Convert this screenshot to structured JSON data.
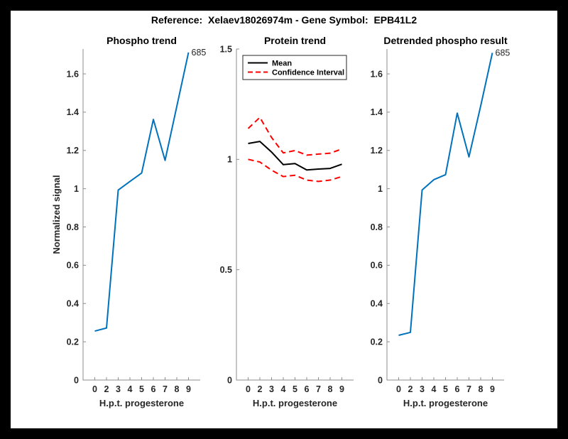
{
  "figure": {
    "title": "Reference:  Xelaev18026974m - Gene Symbol:  EPB41L2"
  },
  "colors": {
    "blue": "#0072BD",
    "black": "#000000",
    "red": "#FF0000",
    "axis": "#8c8c8c",
    "tick_label": "#262626",
    "frame": "#000000",
    "background": "#ffffff"
  },
  "chart_data": [
    {
      "type": "line",
      "title": "Phospho trend",
      "xlabel": "H.p.t. progesterone",
      "ylabel": "Normalized signal",
      "x_ticklabels": [
        "0",
        "2",
        "3",
        "4",
        "5",
        "6",
        "7",
        "8",
        "9"
      ],
      "yticks": [
        0,
        0.2,
        0.4,
        0.6,
        0.8,
        1,
        1.2,
        1.4,
        1.6
      ],
      "ylim": [
        0,
        1.73
      ],
      "grid": false,
      "series": [
        {
          "name": "Phospho signal",
          "color": "#0072BD",
          "style": "solid",
          "values": [
            0.256,
            0.272,
            0.993,
            1.038,
            1.082,
            1.362,
            1.148,
            1.43,
            1.712
          ]
        }
      ],
      "annotation": {
        "text": "685",
        "at": "last-point"
      }
    },
    {
      "type": "line",
      "title": "Protein trend",
      "xlabel": "H.p.t. progesterone",
      "ylabel": "",
      "x_ticklabels": [
        "0",
        "2",
        "3",
        "4",
        "5",
        "6",
        "7",
        "8",
        "9"
      ],
      "yticks": [
        0,
        0.5,
        1,
        1.5
      ],
      "ylim": [
        0,
        1.5
      ],
      "grid": false,
      "series": [
        {
          "name": "Mean",
          "color": "#000000",
          "style": "solid",
          "values": [
            1.072,
            1.081,
            1.033,
            0.976,
            0.981,
            0.952,
            0.956,
            0.959,
            0.978
          ]
        },
        {
          "name": "Confidence Interval upper",
          "color": "#FF0000",
          "style": "dashed",
          "values": [
            1.14,
            1.19,
            1.099,
            1.029,
            1.04,
            1.019,
            1.024,
            1.028,
            1.047
          ]
        },
        {
          "name": "Confidence Interval lower",
          "color": "#FF0000",
          "style": "dashed",
          "values": [
            1.0,
            0.988,
            0.951,
            0.922,
            0.928,
            0.906,
            0.9,
            0.906,
            0.922
          ]
        }
      ],
      "legend": {
        "position": "top-left",
        "entries": [
          {
            "label": "Mean",
            "color": "#000000",
            "style": "solid"
          },
          {
            "label": "Confidence Interval",
            "color": "#FF0000",
            "style": "dashed"
          }
        ]
      }
    },
    {
      "type": "line",
      "title": "Detrended phospho result",
      "xlabel": "H.p.t. progesterone",
      "ylabel": "",
      "x_ticklabels": [
        "0",
        "2",
        "3",
        "4",
        "5",
        "6",
        "7",
        "8",
        "9"
      ],
      "yticks": [
        0,
        0.2,
        0.4,
        0.6,
        0.8,
        1,
        1.2,
        1.4,
        1.6
      ],
      "ylim": [
        0,
        1.73
      ],
      "grid": false,
      "series": [
        {
          "name": "Detrended phospho signal",
          "color": "#0072BD",
          "style": "solid",
          "values": [
            0.234,
            0.249,
            0.993,
            1.047,
            1.073,
            1.395,
            1.166,
            1.432,
            1.71
          ]
        }
      ],
      "annotation": {
        "text": "685",
        "at": "last-point"
      }
    }
  ]
}
